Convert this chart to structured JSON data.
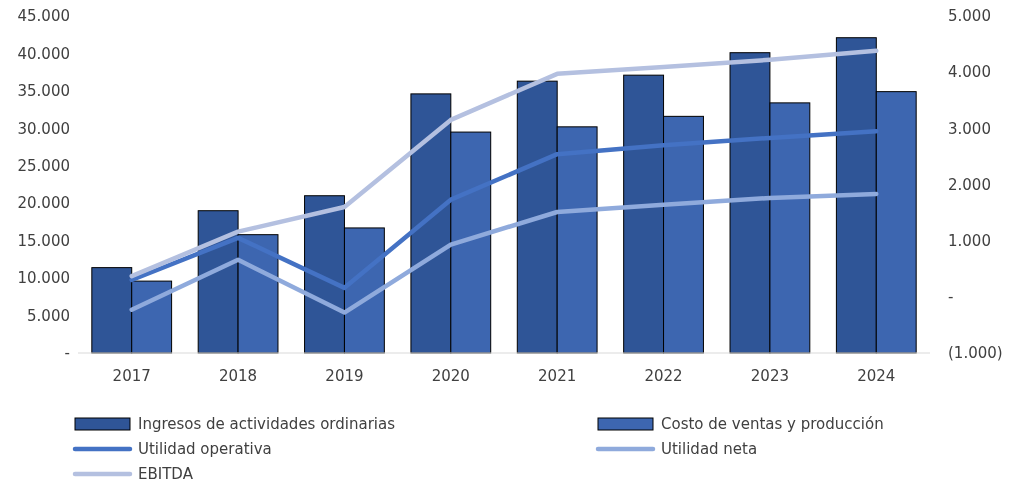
{
  "chart_data": {
    "type": "bar",
    "categories": [
      "2017",
      "2018",
      "2019",
      "2020",
      "2021",
      "2022",
      "2023",
      "2024"
    ],
    "series": [
      {
        "name": "Ingresos de actividades ordinarias",
        "color": "#2f5597",
        "values": [
          11400,
          19000,
          21000,
          34600,
          36300,
          37100,
          40100,
          42100
        ]
      },
      {
        "name": "Costo de ventas y producción",
        "color": "#3d66b0",
        "values": [
          9600,
          15800,
          16700,
          29500,
          30200,
          31600,
          33400,
          34900
        ]
      },
      {
        "name": "Utilidad operativa",
        "type": "line",
        "axis": "y2",
        "color": "#4472c4",
        "values": [
          300,
          1050,
          160,
          1730,
          2540,
          2700,
          2830,
          2950
        ]
      },
      {
        "name": "Utilidad neta",
        "type": "line",
        "axis": "y2",
        "color": "#8faadc",
        "values": [
          -230,
          660,
          -280,
          930,
          1510,
          1640,
          1760,
          1830
        ]
      },
      {
        "name": "EBITDA",
        "type": "line",
        "axis": "y2",
        "color": "#b4c0e0",
        "values": [
          370,
          1160,
          1600,
          3150,
          3970,
          4090,
          4220,
          4380
        ]
      }
    ],
    "ylim": [
      0,
      45000
    ],
    "yticks": [
      {
        "value": 0,
        "label": "-"
      },
      {
        "value": 5000,
        "label": "5.000"
      },
      {
        "value": 10000,
        "label": "10.000"
      },
      {
        "value": 15000,
        "label": "15.000"
      },
      {
        "value": 20000,
        "label": "20.000"
      },
      {
        "value": 25000,
        "label": "25.000"
      },
      {
        "value": 30000,
        "label": "30.000"
      },
      {
        "value": 35000,
        "label": "35.000"
      },
      {
        "value": 40000,
        "label": "40.000"
      },
      {
        "value": 45000,
        "label": "45.000"
      }
    ],
    "y2lim": [
      -1000,
      5000
    ],
    "y2ticks": [
      {
        "value": -1000,
        "label": "(1.000)"
      },
      {
        "value": 0,
        "label": "-"
      },
      {
        "value": 1000,
        "label": "1.000"
      },
      {
        "value": 2000,
        "label": "2.000"
      },
      {
        "value": 3000,
        "label": "3.000"
      },
      {
        "value": 4000,
        "label": "4.000"
      },
      {
        "value": 5000,
        "label": "5.000"
      }
    ],
    "legend": "bottom",
    "grid": false
  }
}
